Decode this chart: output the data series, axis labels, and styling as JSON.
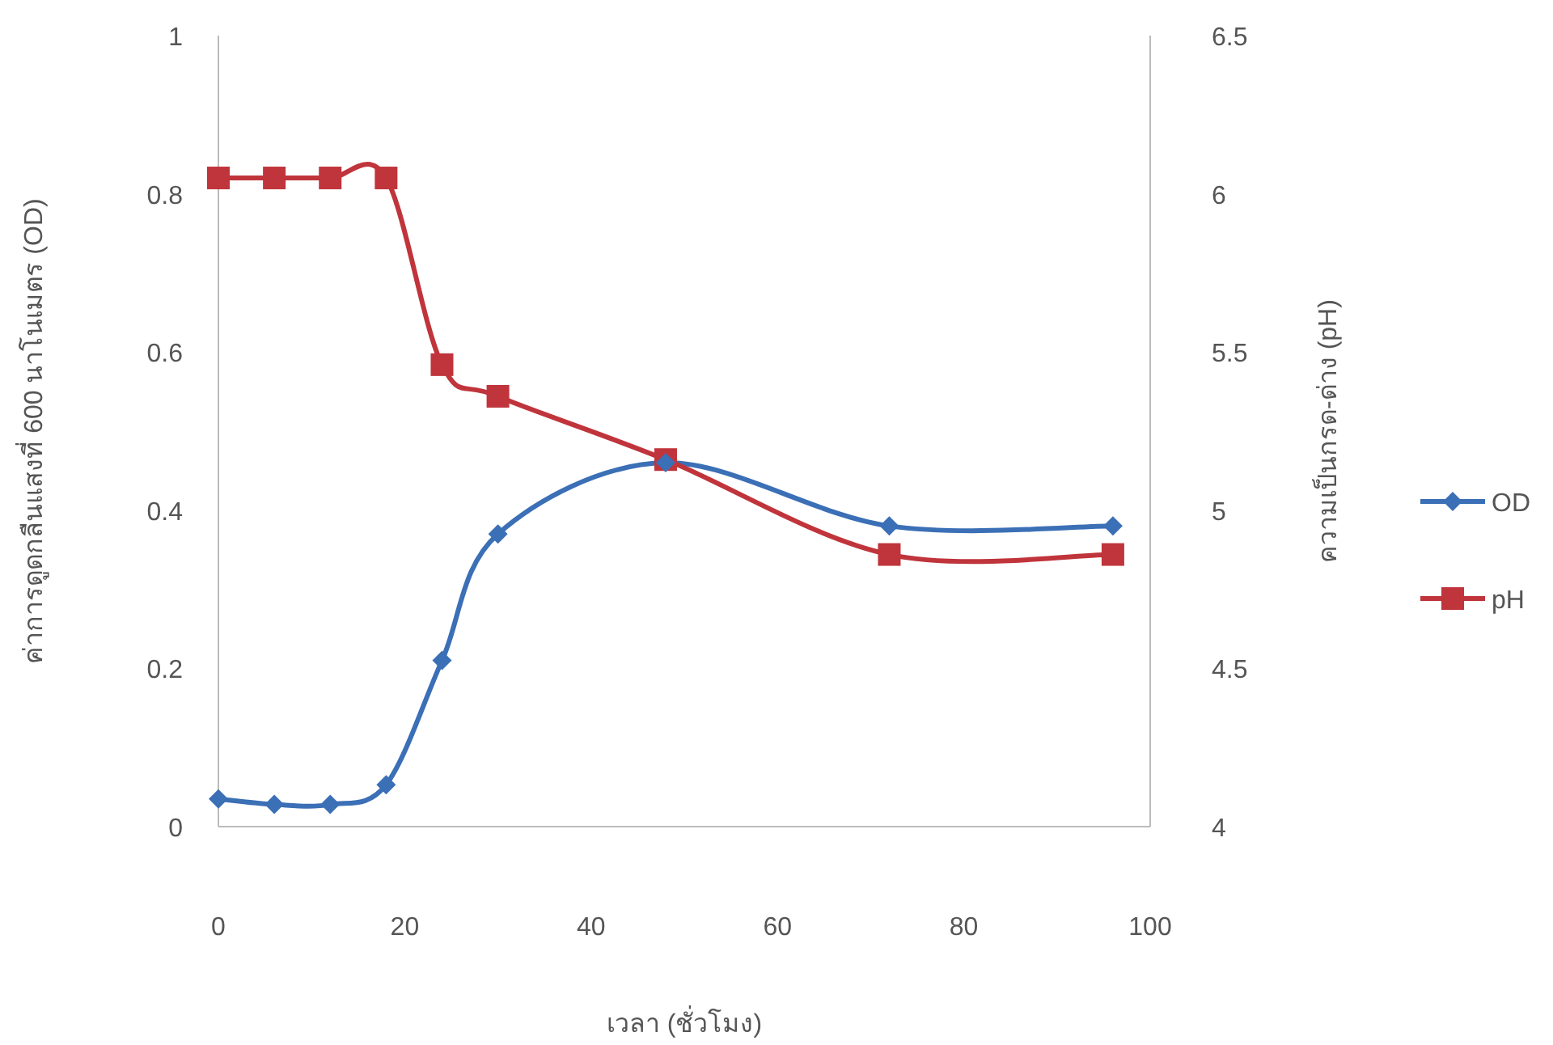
{
  "chart_data": {
    "type": "line",
    "xlabel": "เวลา (ชั่วโมง)",
    "ylabel": "ค่าการดูดกลืนแสงที่ 600 นาโนเมตร (OD)",
    "y2label": "ความเป็นกรด-ด่าง (pH)",
    "x": [
      0,
      6,
      12,
      18,
      24,
      30,
      48,
      72,
      96
    ],
    "xlim": [
      0,
      100
    ],
    "xticks": [
      0,
      20,
      40,
      60,
      80,
      100
    ],
    "ylim": [
      0,
      1
    ],
    "yticks": [
      0,
      0.2,
      0.4,
      0.6,
      0.8,
      1
    ],
    "y2lim": [
      4,
      6.5
    ],
    "y2ticks": [
      4,
      4.5,
      5,
      5.5,
      6,
      6.5
    ],
    "series": [
      {
        "name": "OD",
        "color": "#3b6fb6",
        "marker": "diamond",
        "values": [
          0.035,
          0.028,
          0.028,
          0.053,
          0.21,
          0.37,
          0.46,
          0.38,
          0.38
        ]
      },
      {
        "name": "pH",
        "color": "#c0343b",
        "marker": "square",
        "axis": "y2",
        "values": [
          6.05,
          6.05,
          6.05,
          6.05,
          5.46,
          5.36,
          5.16,
          4.86,
          4.86
        ]
      }
    ],
    "legend": "right",
    "grid": false
  }
}
